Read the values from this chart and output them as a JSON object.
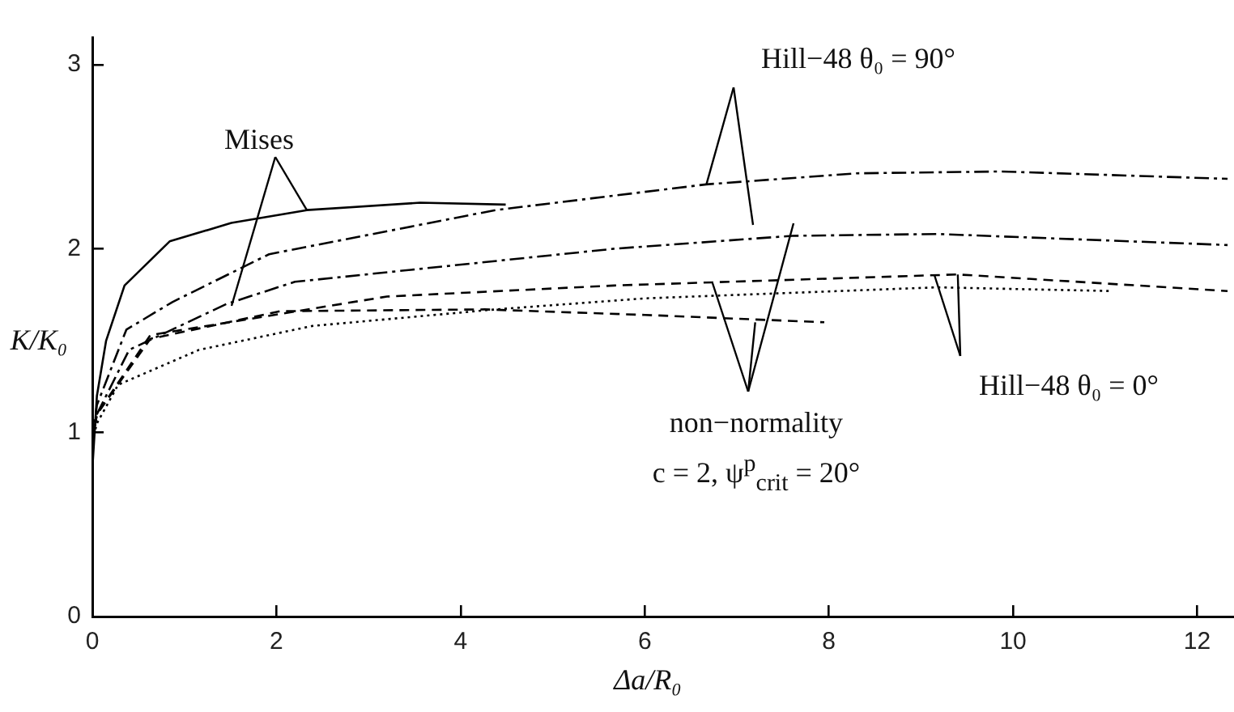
{
  "chart_data": {
    "type": "line",
    "xlabel": "Δa/R₀",
    "ylabel": "K/K₀",
    "xlim": [
      0,
      12.4
    ],
    "ylim": [
      0,
      3.15
    ],
    "xticks": [
      0,
      2,
      4,
      6,
      8,
      10,
      12
    ],
    "yticks": [
      0,
      1,
      2,
      3
    ],
    "grid": false,
    "legend": false,
    "marker": "none",
    "annotations": [
      {
        "text": "Mises",
        "x": 2.33,
        "y": 2.21
      },
      {
        "text": "Hill−48  θ₀ = 90°",
        "x": 6.67,
        "y": 2.35
      },
      {
        "text": "Hill−48  θ₀ = 0°",
        "x": 9.4,
        "y": 1.86
      },
      {
        "text": "non−normality\nc = 2,  ψ$^{p}$$_{crit}$ = 20°",
        "x": 7.2,
        "y": 1.6
      }
    ],
    "series": [
      {
        "color": "#000000",
        "line_style": "solid",
        "x": [
          0,
          0.05,
          0.15,
          0.35,
          0.84,
          1.51,
          2.33,
          3.56,
          4.49
        ],
        "values": [
          0.8,
          1.2,
          1.5,
          1.8,
          2.04,
          2.14,
          2.21,
          2.25,
          2.24
        ]
      },
      {
        "color": "#000000",
        "line_style": "dashdot",
        "x": [
          0,
          0.05,
          0.37,
          0.87,
          1.92,
          4.38,
          6.67,
          8.3,
          9.88,
          12.33
        ],
        "values": [
          0.95,
          1.15,
          1.56,
          1.71,
          1.97,
          2.21,
          2.35,
          2.41,
          2.42,
          2.38
        ]
      },
      {
        "color": "#000000",
        "line_style": "dashdot",
        "x": [
          0,
          0.05,
          0.4,
          1.46,
          2.2,
          5.67,
          7.6,
          9.18,
          12.33
        ],
        "values": [
          0.95,
          1.1,
          1.45,
          1.7,
          1.82,
          2.0,
          2.07,
          2.08,
          2.02
        ]
      },
      {
        "color": "#000000",
        "line_style": "dashed",
        "x": [
          0,
          0.05,
          0.63,
          3.2,
          5.67,
          9.4,
          12.33
        ],
        "values": [
          0.95,
          1.1,
          1.53,
          1.74,
          1.8,
          1.86,
          1.77
        ]
      },
      {
        "color": "#000000",
        "line_style": "dotted",
        "x": [
          0,
          0.05,
          0.28,
          1.16,
          2.39,
          4.38,
          6.0,
          9.18,
          11.05
        ],
        "values": [
          0.95,
          1.05,
          1.26,
          1.45,
          1.58,
          1.67,
          1.73,
          1.79,
          1.77
        ]
      },
      {
        "color": "#000000",
        "line_style": "dashed",
        "x": [
          0,
          0.05,
          0.63,
          2.04,
          4.26,
          6.0,
          7.95
        ],
        "values": [
          0.95,
          1.1,
          1.51,
          1.66,
          1.67,
          1.64,
          1.6
        ]
      }
    ]
  }
}
